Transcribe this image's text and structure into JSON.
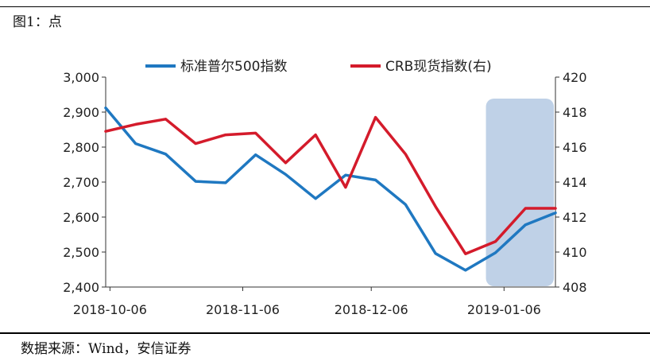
{
  "figure_title": "图1：点",
  "source": "数据来源：Wind，安信证券",
  "colors": {
    "sp500": "#1f78c1",
    "crb": "#d41b2b",
    "highlight": "#b8cce4"
  },
  "chart_data": {
    "type": "line",
    "x": [
      "2018-10-05",
      "2018-10-12",
      "2018-10-19",
      "2018-10-26",
      "2018-11-02",
      "2018-11-09",
      "2018-11-16",
      "2018-11-23",
      "2018-11-30",
      "2018-12-07",
      "2018-12-14",
      "2018-12-21",
      "2018-12-28",
      "2019-01-04",
      "2019-01-11",
      "2019-01-18"
    ],
    "x_tick_labels": [
      "2018-10-06",
      "2018-11-06",
      "2018-12-06",
      "2019-01-06"
    ],
    "series": [
      {
        "name": "标准普尔500指数",
        "axis": "left",
        "values": [
          2912,
          2810,
          2780,
          2702,
          2698,
          2778,
          2722,
          2653,
          2720,
          2706,
          2636,
          2496,
          2448,
          2498,
          2578,
          2612
        ]
      },
      {
        "name": "CRB现货指数(右)",
        "axis": "right",
        "values": [
          416.9,
          417.3,
          417.6,
          416.2,
          416.7,
          416.8,
          415.1,
          416.7,
          413.7,
          417.7,
          415.6,
          412.6,
          409.9,
          410.6,
          412.5,
          412.5
        ]
      }
    ],
    "ylim_left": [
      2400,
      3000
    ],
    "yticks_left": [
      "2,400",
      "2,500",
      "2,600",
      "2,700",
      "2,800",
      "2,900",
      "3,000"
    ],
    "ylim_right": [
      408,
      420
    ],
    "yticks_right": [
      "408",
      "410",
      "412",
      "414",
      "416",
      "418",
      "420"
    ],
    "highlight_range": [
      "2019-01-04",
      "2019-01-18"
    ],
    "legend_position": "top",
    "grid": false
  }
}
